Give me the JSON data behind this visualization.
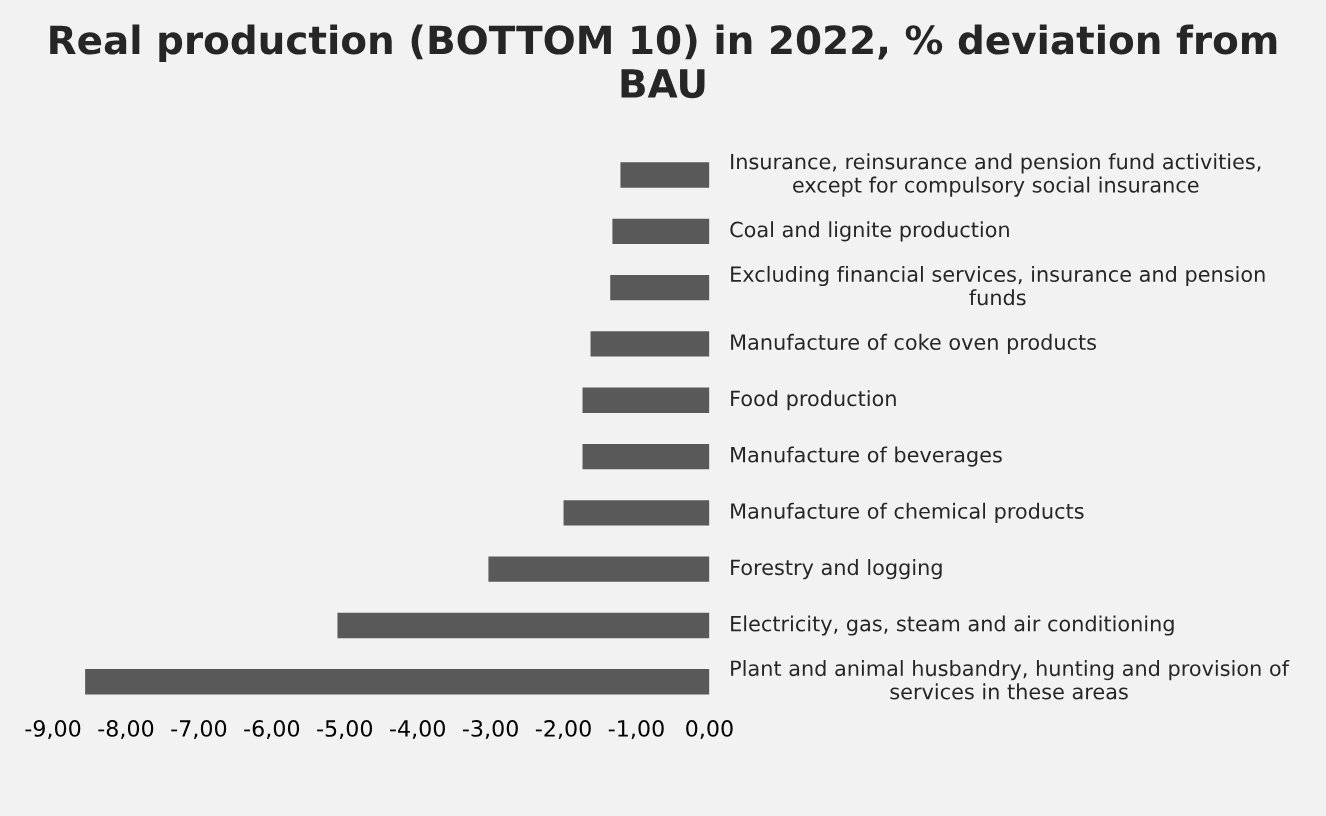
{
  "chart_data": {
    "type": "bar",
    "orientation": "horizontal",
    "title": "Real production (BOTTOM 10) in 2022, % deviation from BAU",
    "categories": [
      "Insurance, reinsurance and pension fund activities, except for compulsory social insurance",
      "Coal and lignite production",
      "Excluding financial services, insurance and pension funds",
      "Manufacture of coke oven products",
      "Food production",
      "Manufacture of beverages",
      "Manufacture of chemical products",
      "Forestry and logging",
      "Electricity, gas, steam and air conditioning",
      "Plant and animal husbandry, hunting and provision of services in these areas"
    ],
    "values": [
      -1.22,
      -1.33,
      -1.36,
      -1.63,
      -1.74,
      -1.74,
      -2.0,
      -3.03,
      -5.1,
      -8.56
    ],
    "color": "#595959",
    "xlim": [
      -9,
      0
    ],
    "xticks": [
      {
        "value": -9,
        "label": "-9,00"
      },
      {
        "value": -8,
        "label": "-8,00"
      },
      {
        "value": -7,
        "label": "-7,00"
      },
      {
        "value": -6,
        "label": "-6,00"
      },
      {
        "value": -5,
        "label": "-5,00"
      },
      {
        "value": -4,
        "label": "-4,00"
      },
      {
        "value": -3,
        "label": "-3,00"
      },
      {
        "value": -2,
        "label": "-2,00"
      },
      {
        "value": -1,
        "label": "-1,00"
      },
      {
        "value": 0,
        "label": "0,00"
      }
    ],
    "grid": false
  }
}
